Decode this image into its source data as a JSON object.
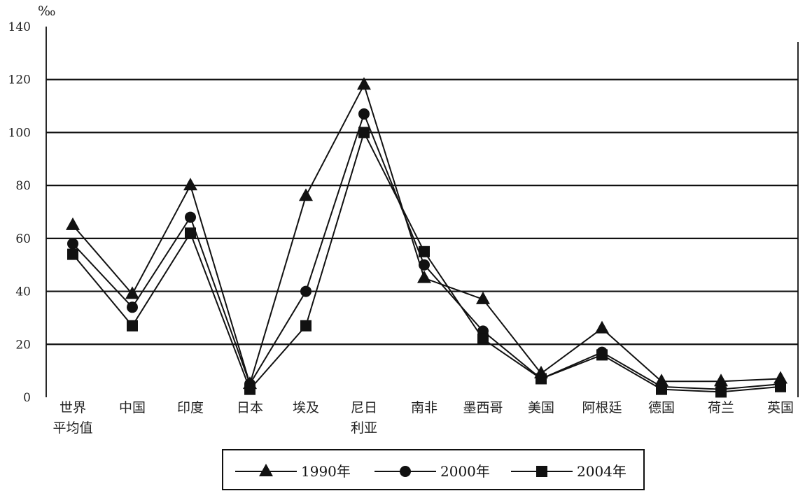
{
  "chart_data": {
    "type": "line",
    "unit": "‰",
    "ylim": [
      0,
      140
    ],
    "yticks": [
      0,
      20,
      40,
      60,
      80,
      100,
      120,
      140
    ],
    "grid": true,
    "legend_position": "bottom",
    "categories": [
      [
        "世界",
        "平均值"
      ],
      [
        "中国"
      ],
      [
        "印度"
      ],
      [
        "日本"
      ],
      [
        "埃及"
      ],
      [
        "尼日",
        "利亚"
      ],
      [
        "南非"
      ],
      [
        "墨西哥"
      ],
      [
        "美国"
      ],
      [
        "阿根廷"
      ],
      [
        "德国"
      ],
      [
        "荷兰"
      ],
      [
        "英国"
      ]
    ],
    "series": [
      {
        "name": "1990年",
        "marker": "triangle",
        "values": [
          65,
          39,
          80,
          5,
          76,
          118,
          45,
          37,
          9,
          26,
          6,
          6,
          7
        ]
      },
      {
        "name": "2000年",
        "marker": "circle",
        "values": [
          58,
          34,
          68,
          5,
          40,
          107,
          50,
          25,
          7,
          17,
          4,
          3,
          5
        ]
      },
      {
        "name": "2004年",
        "marker": "square",
        "values": [
          54,
          27,
          62,
          3,
          27,
          100,
          55,
          22,
          7,
          16,
          3,
          2,
          4
        ]
      }
    ]
  }
}
